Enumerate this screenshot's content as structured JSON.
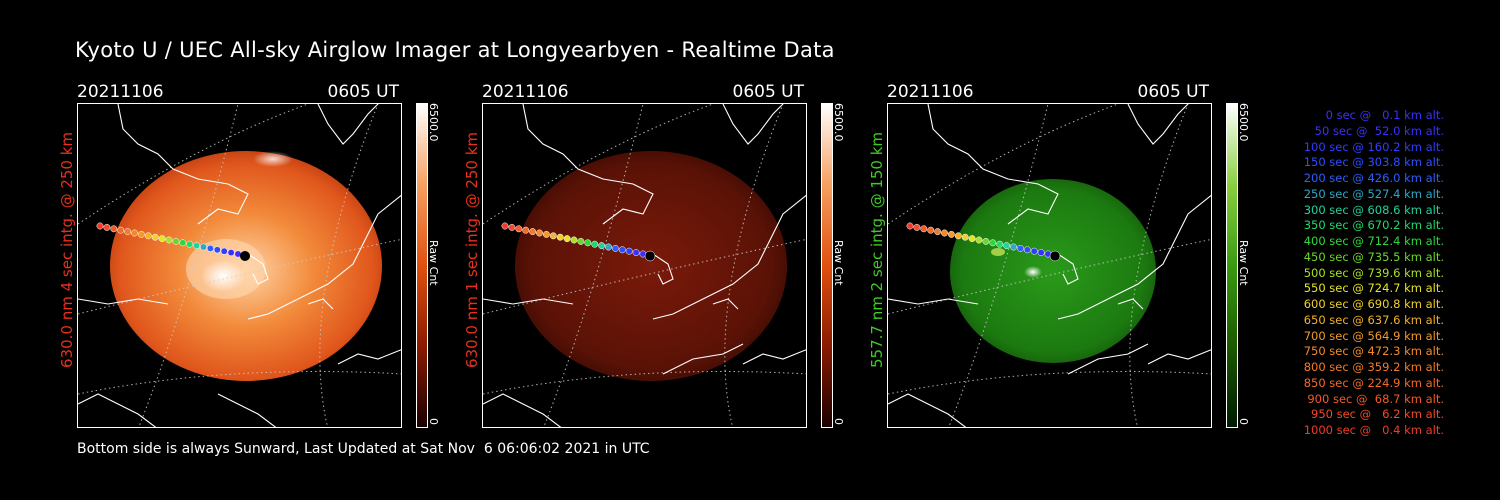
{
  "title": "Kyoto U / UEC All-sky Airglow Imager at Longyearbyen - Realtime Data",
  "footer": "Bottom side is always Sunward, Last Updated at Sat Nov  6 06:06:02 2021 in UTC",
  "panels": [
    {
      "date": "20211106",
      "time": "0605 UT",
      "ylabel": "630.0 nm 4 sec intg. @ 250 km",
      "label_color": "#e8301c",
      "cbar_max": "6500.0",
      "cbar_unit": "Raw Cnt",
      "cbar_min": "0",
      "colormap": "red-bright"
    },
    {
      "date": "20211106",
      "time": "0605 UT",
      "ylabel": "630.0 nm 1 sec intg. @ 250 km",
      "label_color": "#e8301c",
      "cbar_max": "6500.0",
      "cbar_unit": "Raw Cnt",
      "cbar_min": "0",
      "colormap": "red-dark"
    },
    {
      "date": "20211106",
      "time": "0605 UT",
      "ylabel": "557.7 nm 2 sec intg. @ 150 km",
      "label_color": "#3ccd22",
      "cbar_max": "6500.0",
      "cbar_unit": "Raw Cnt",
      "cbar_min": "0",
      "colormap": "green"
    }
  ],
  "legend": [
    {
      "text": "0 sec @   0.1 km alt.",
      "color": "#3a2fff"
    },
    {
      "text": "50 sec @  52.0 km alt.",
      "color": "#3a2fff"
    },
    {
      "text": "100 sec @ 160.2 km alt.",
      "color": "#2f3dff"
    },
    {
      "text": "150 sec @ 303.8 km alt.",
      "color": "#2f4dff"
    },
    {
      "text": "200 sec @ 426.0 km alt.",
      "color": "#2f5dff"
    },
    {
      "text": "250 sec @ 527.4 km alt.",
      "color": "#2ea8c8"
    },
    {
      "text": "300 sec @ 608.6 km alt.",
      "color": "#22d29c"
    },
    {
      "text": "350 sec @ 670.2 km alt.",
      "color": "#22d86a"
    },
    {
      "text": "400 sec @ 712.4 km alt.",
      "color": "#2fd83a"
    },
    {
      "text": "450 sec @ 735.5 km alt.",
      "color": "#6ad82a"
    },
    {
      "text": "500 sec @ 739.6 km alt.",
      "color": "#a8e028"
    },
    {
      "text": "550 sec @ 724.7 km alt.",
      "color": "#e4e42a"
    },
    {
      "text": "600 sec @ 690.8 km alt.",
      "color": "#f0d02a"
    },
    {
      "text": "650 sec @ 637.6 km alt.",
      "color": "#f2b22a"
    },
    {
      "text": "700 sec @ 564.9 km alt.",
      "color": "#f29a2a"
    },
    {
      "text": "750 sec @ 472.3 km alt.",
      "color": "#f28a2a"
    },
    {
      "text": "800 sec @ 359.2 km alt.",
      "color": "#f27a2a"
    },
    {
      "text": "850 sec @ 224.9 km alt.",
      "color": "#f26a2a"
    },
    {
      "text": "900 sec @  68.7 km alt.",
      "color": "#f25a2a"
    },
    {
      "text": "950 sec @   6.2 km alt.",
      "color": "#f24a2a"
    },
    {
      "text": "1000 sec @   0.4 km alt.",
      "color": "#f23a2a"
    }
  ]
}
